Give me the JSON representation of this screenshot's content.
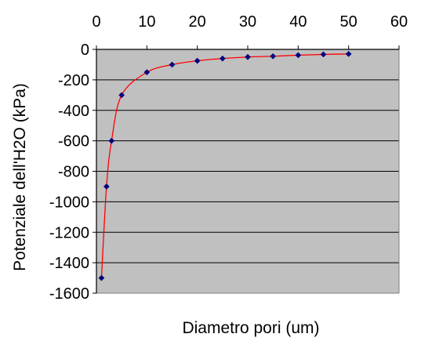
{
  "chart_data": {
    "type": "scatter",
    "xlabel": "Diametro pori (um)",
    "ylabel": "Potenziale dell'H2O (kPa)",
    "xlim": [
      0,
      60
    ],
    "ylim": [
      -1600,
      0
    ],
    "x_ticks": [
      0,
      10,
      20,
      30,
      40,
      50,
      60
    ],
    "y_ticks": [
      0,
      -200,
      -400,
      -600,
      -800,
      -1000,
      -1200,
      -1400,
      -1600
    ],
    "x_axis_position": "top",
    "grid": "horizontal",
    "legend": "none",
    "colors": {
      "plot_background": "#c0c0c0",
      "marker": "#00007f",
      "line": "#ff0000",
      "gridline": "#000000"
    },
    "series": [
      {
        "x": [
          1,
          2,
          3,
          5,
          10,
          15,
          20,
          25,
          30,
          35,
          40,
          45,
          50
        ],
        "y": [
          -1500,
          -900,
          -600,
          -300,
          -150,
          -100,
          -75,
          -60,
          -50,
          -45,
          -38,
          -33,
          -30
        ]
      }
    ]
  }
}
